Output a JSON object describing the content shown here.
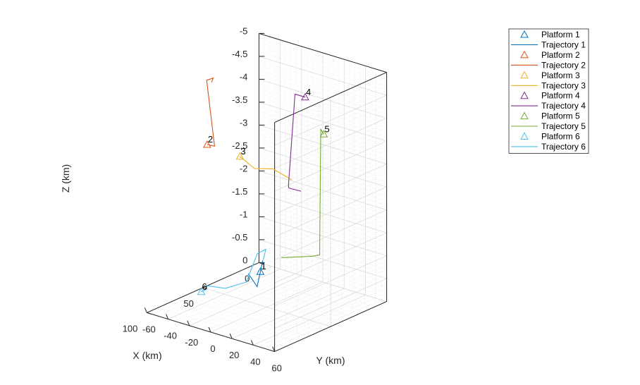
{
  "chart_data": {
    "type": "line3d",
    "xlabel": "X (km)",
    "ylabel": "Y (km)",
    "zlabel": "Z (km)",
    "xlim": [
      0,
      100
    ],
    "ylim": [
      -60,
      60
    ],
    "zlim": [
      -5,
      0
    ],
    "x_ticks": [
      "0",
      "50",
      "100"
    ],
    "y_ticks": [
      "-60",
      "-40",
      "-20",
      "0",
      "20",
      "40",
      "60"
    ],
    "z_ticks": [
      "-5",
      "-4.5",
      "-4",
      "-3.5",
      "-3",
      "-2.5",
      "-2",
      "-1.5",
      "-1",
      "-0.5",
      "0"
    ],
    "z_reversed": true,
    "grid": true,
    "legend_position": "top-right",
    "platforms": [
      {
        "label": "1",
        "legend_marker": "Platform 1",
        "legend_line": "Trajectory 1",
        "color": "#0072BD",
        "marker": {
          "x": 51.0,
          "y": -5.0,
          "z": -0.75
        },
        "trajectory": {
          "x": [
            51.0,
            45.0,
            70.0,
            68.5
          ],
          "y": [
            -5.0,
            -9.0,
            12.0,
            2.0
          ],
          "z": [
            -0.75,
            -0.9,
            -0.75,
            -0.95
          ]
        }
      },
      {
        "label": "2",
        "legend_marker": "Platform 2",
        "legend_line": "Trajectory 2",
        "color": "#D95319",
        "marker": {
          "x": 50.0,
          "y": -56.0,
          "z": -3.15
        },
        "trajectory": {
          "x": [
            50.0,
            52.0,
            50.0,
            45.0,
            48.0
          ],
          "y": [
            -56.0,
            -47.0,
            -56.5,
            -55.5,
            -54.0
          ],
          "z": [
            -3.15,
            -3.2,
            -4.55,
            -4.55,
            -4.5
          ]
        }
      },
      {
        "label": "3",
        "legend_marker": "Platform 3",
        "legend_line": "Trajectory 3",
        "color": "#EDB120",
        "marker": {
          "x": 55.0,
          "y": -20.0,
          "z": -3.2
        },
        "trajectory": {
          "x": [
            55.0,
            56.0,
            55.0,
            56.0
          ],
          "y": [
            -20.0,
            -5.0,
            11.0,
            30.0
          ],
          "z": [
            -3.2,
            -3.05,
            -3.15,
            -3.05
          ]
        }
      },
      {
        "label": "4",
        "legend_marker": "Platform 4",
        "legend_line": "Trajectory 4",
        "color": "#7E2F8E",
        "marker": {
          "x": 10.0,
          "y": -6.0,
          "z": -4.1
        },
        "trajectory": {
          "x": [
            10.0,
            10.0,
            9.8,
            9.8,
            9.5,
            10.0
          ],
          "y": [
            -6.0,
            -15.5,
            -16.0,
            -22.0,
            -22.0,
            -10.0
          ],
          "z": [
            -4.1,
            -4.1,
            -4.05,
            -2.05,
            -2.0,
            -2.02
          ]
        }
      },
      {
        "label": "5",
        "legend_marker": "Platform 5",
        "legend_line": "Trajectory 5",
        "color": "#77AC30",
        "marker": {
          "x": 20.0,
          "y": 22.0,
          "z": -3.6
        },
        "trajectory": {
          "x": [
            20.0,
            18.0,
            18.0,
            25.0,
            35.0
          ],
          "y": [
            22.0,
            17.0,
            16.0,
            16.0,
            -2.0
          ],
          "z": [
            -3.6,
            -3.65,
            -0.9,
            -0.95,
            -0.9
          ]
        }
      },
      {
        "label": "6",
        "legend_marker": "Platform 6",
        "legend_line": "Trajectory 6",
        "color": "#4DBEEE",
        "marker": {
          "x": 80.0,
          "y": -30.0,
          "z": -0.45
        },
        "trajectory": {
          "x": [
            80.0,
            76.0,
            76.0,
            70.0,
            55.0,
            47.0,
            47.0,
            55.0
          ],
          "y": [
            -30.0,
            -30.0,
            -28.0,
            -18.0,
            -14.0,
            -12.0,
            -4.0,
            2.0
          ],
          "z": [
            -0.45,
            -0.45,
            -0.55,
            -0.5,
            -0.5,
            -1.05,
            -1.2,
            -1.1
          ]
        }
      }
    ]
  }
}
